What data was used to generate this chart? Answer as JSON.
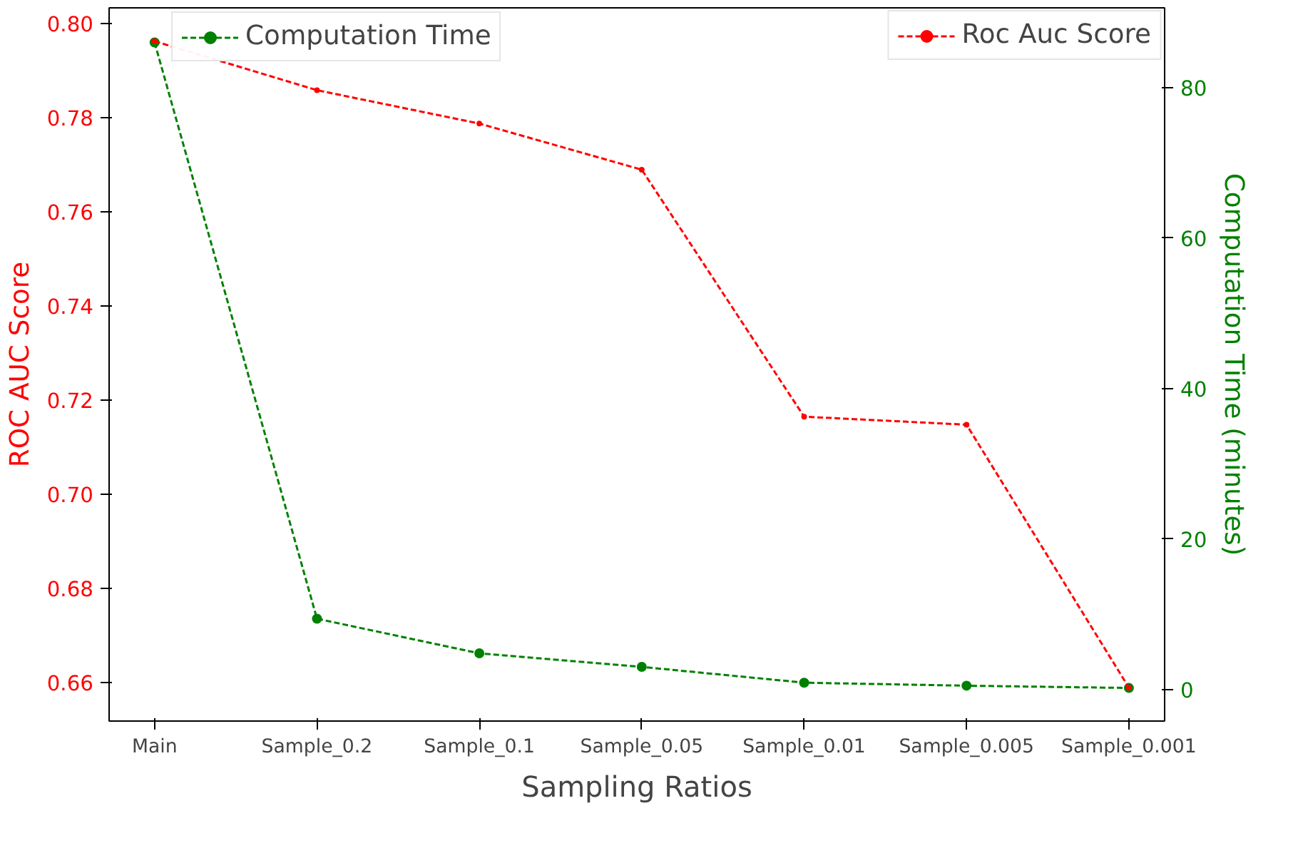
{
  "chart_data": {
    "type": "line",
    "xlabel": "Sampling Ratios",
    "ylabel": "ROC AUC Score",
    "y2label": "Computation Time (minutes)",
    "categories": [
      "Main",
      "Sample_0.2",
      "Sample_0.1",
      "Sample_0.05",
      "Sample_0.01",
      "Sample_0.005",
      "Sample_0.001"
    ],
    "series": [
      {
        "name": "Roc Auc Score",
        "color": "#ff0000",
        "values": [
          0.7963,
          0.7859,
          0.7788,
          0.769,
          0.7165,
          0.7148,
          0.6589
        ]
      },
      {
        "name": "Computation Time",
        "color": "#008000",
        "axis": "y2",
        "values": [
          86,
          9.4,
          4.8,
          3.0,
          0.9,
          0.5,
          0.2
        ]
      }
    ],
    "ylim": [
      0.6518,
      0.8034
    ],
    "yticks": [
      0.66,
      0.68,
      {
        "value": 0.7,
        "label": "0.70"
      },
      0.72,
      0.74,
      0.76,
      0.78,
      {
        "value": 0.8,
        "label": "0.80"
      }
    ],
    "y2lim": [
      -4.2,
      90.6
    ],
    "y2ticks": [
      0,
      20,
      40,
      60,
      80
    ],
    "legend": "top right",
    "marker": "circle",
    "line_style": "dashed",
    "grid": false
  }
}
